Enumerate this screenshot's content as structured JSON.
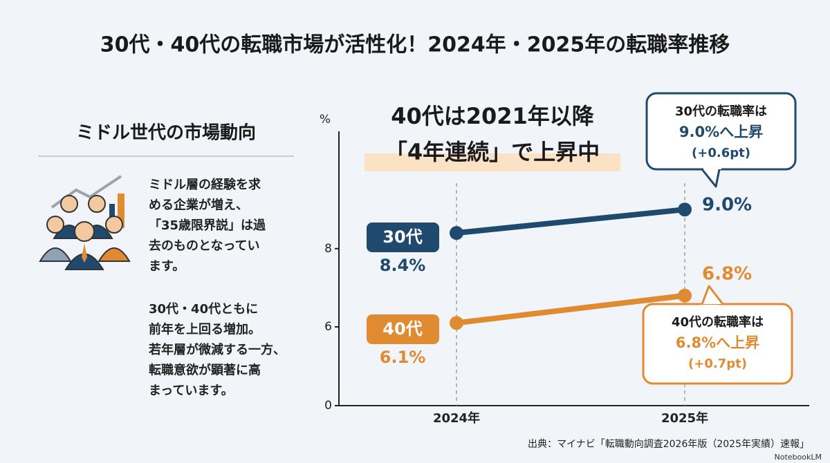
{
  "chart_data": {
    "type": "line",
    "title": "30代・40代の転職市場が活性化！2024年・2025年の転職率推移",
    "headline": [
      "40代は2021年以降",
      "「4年連続」で上昇中"
    ],
    "categories": [
      "2024年",
      "2025年"
    ],
    "series": [
      {
        "name": "30代",
        "color": "#1f4a6e",
        "values": [
          8.4,
          9.0
        ],
        "value_labels": [
          "8.4%",
          "9.0%"
        ]
      },
      {
        "name": "40代",
        "color": "#e08a32",
        "values": [
          6.1,
          6.8
        ],
        "value_labels": [
          "6.1%",
          "6.8%"
        ]
      }
    ],
    "y_label": "%",
    "ylim": [
      0,
      11
    ],
    "yticks": [
      0,
      6,
      8
    ],
    "callouts": [
      {
        "lines": [
          "30代の転職率は",
          "9.0%へ上昇",
          "(+0.6pt)"
        ]
      },
      {
        "lines": [
          "40代の転職率は",
          "6.8%へ上昇",
          "(+0.7pt)"
        ]
      }
    ]
  },
  "panel": {
    "heading": "ミドル世代の市場動向",
    "paragraphs": [
      [
        "ミドル層の経験を求",
        "める企業が増え、",
        "「35歳限界説」は過",
        "去のものとなってい",
        "ます。"
      ],
      [
        "30代・40代ともに",
        "前年を上回る増加。",
        "若年層が微減する一方、",
        "転職意欲が顕著に高",
        "まっています。"
      ]
    ]
  },
  "source": "出典：マイナビ「転職動向調査2026年版（2025年実績）速報」",
  "brand": "NotebookLM"
}
